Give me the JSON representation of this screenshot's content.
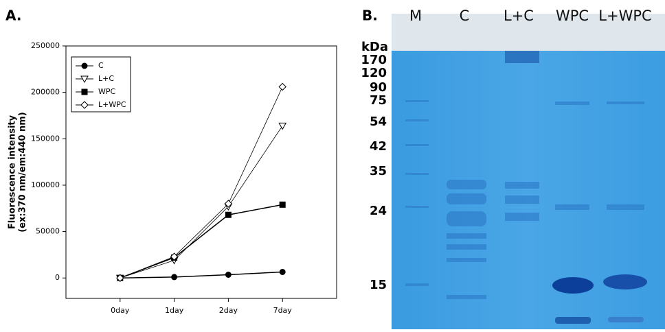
{
  "panel_a_label": "A.",
  "chart_data": {
    "type": "line",
    "y_label": [
      "Fluorescence intensity",
      "(ex:370 nm/em:440 nm)"
    ],
    "categories": [
      "0day",
      "1day",
      "2day",
      "7day"
    ],
    "series": [
      {
        "name": "C",
        "color": "#000000",
        "marker": "circle",
        "filled": true,
        "values": [
          0,
          1000,
          3500,
          6500
        ]
      },
      {
        "name": "L+C",
        "color": "#000000",
        "marker": "triangle-down",
        "filled": false,
        "values": [
          0,
          19000,
          77000,
          164000
        ]
      },
      {
        "name": "WPC",
        "color": "#000000",
        "marker": "square",
        "filled": true,
        "values": [
          0,
          22000,
          68000,
          79000
        ]
      },
      {
        "name": "L+WPC",
        "color": "#000000",
        "marker": "diamond",
        "filled": false,
        "values": [
          0,
          23000,
          80000,
          206000
        ]
      }
    ],
    "ylim": [
      -22000,
      250000
    ],
    "yticks": [
      0,
      50000,
      100000,
      150000,
      200000,
      250000
    ],
    "legend": "upper left"
  },
  "gel": {
    "label": "B.",
    "lanes": [
      "M",
      "C",
      "L+C",
      "WPC",
      "L+WPC"
    ],
    "unit": "kDa",
    "markers": [
      170,
      120,
      90,
      75,
      54,
      42,
      35,
      24,
      15
    ]
  }
}
